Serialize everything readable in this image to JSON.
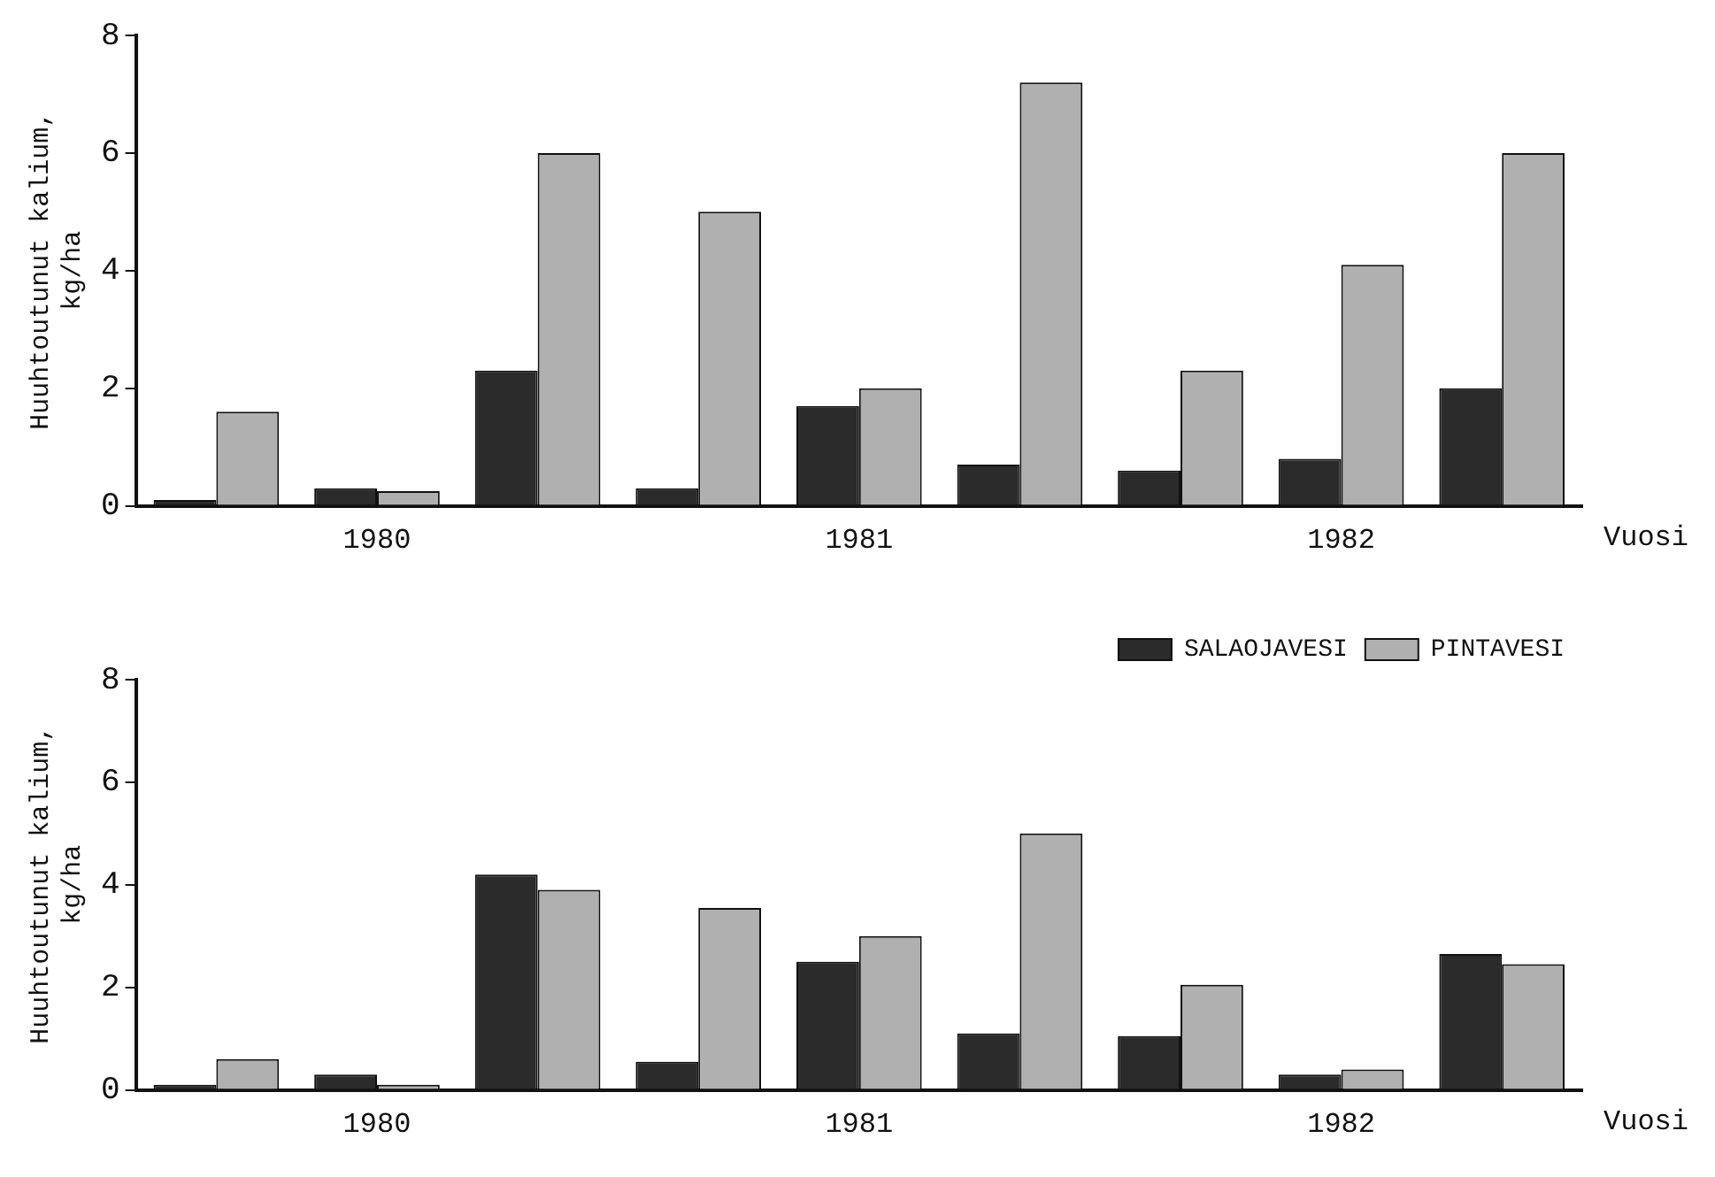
{
  "chart_data": [
    {
      "type": "bar",
      "ylabel": "Huuhtoutunut kalium,\nkg/ha",
      "xlabel": "Vuosi",
      "categories": [
        null,
        "1980",
        null,
        null,
        "1981",
        null,
        null,
        "1982",
        null
      ],
      "series": [
        {
          "color": "#2b2b2b",
          "values": [
            0.1,
            0.3,
            2.3,
            0.3,
            1.7,
            0.7,
            0.6,
            0.8,
            2.0
          ]
        },
        {
          "color": "#b0b0b0",
          "values": [
            1.6,
            0.25,
            6.0,
            5.0,
            2.0,
            7.2,
            2.3,
            4.1,
            6.0
          ]
        }
      ],
      "ylim": [
        0,
        8
      ],
      "yticks": [
        0,
        2,
        4,
        6,
        8
      ],
      "grid": false,
      "legend": false
    },
    {
      "type": "bar",
      "ylabel": "Huuhtoutunut kalium,\nkg/ha",
      "xlabel": "Vuosi",
      "categories": [
        null,
        "1980",
        null,
        null,
        "1981",
        null,
        null,
        "1982",
        null
      ],
      "series": [
        {
          "name": "SALAOJAVESI",
          "color": "#2b2b2b",
          "values": [
            0.1,
            0.3,
            4.2,
            0.55,
            2.5,
            1.1,
            1.05,
            0.3,
            2.65
          ]
        },
        {
          "name": "PINTAVESI",
          "color": "#b0b0b0",
          "values": [
            0.6,
            0.1,
            3.9,
            3.55,
            3.0,
            5.0,
            2.05,
            0.4,
            2.45
          ]
        }
      ],
      "ylim": [
        0,
        8
      ],
      "yticks": [
        0,
        2,
        4,
        6,
        8
      ],
      "grid": false,
      "legend": "top right"
    }
  ]
}
